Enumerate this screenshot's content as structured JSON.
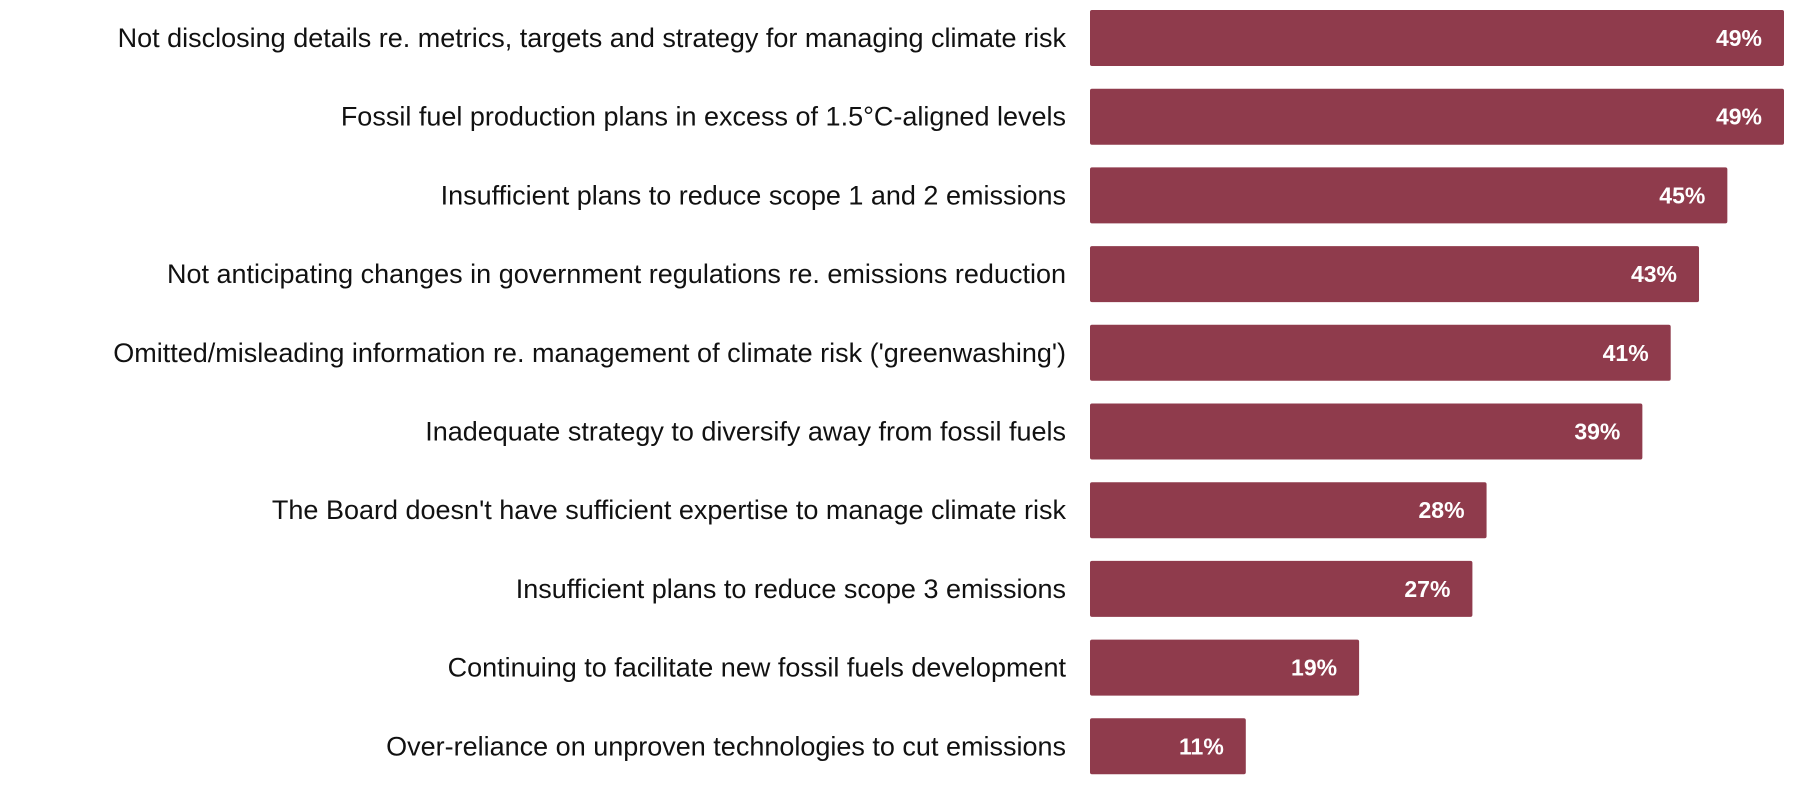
{
  "chart_data": {
    "type": "bar",
    "orientation": "horizontal",
    "title": "",
    "xlabel": "",
    "ylabel": "",
    "xlim": [
      0,
      49
    ],
    "grid": false,
    "legend": "none",
    "value_suffix": "%",
    "bar_color": "#8f3b4c",
    "categories": [
      "Not disclosing details re. metrics, targets and strategy for managing climate risk",
      "Fossil fuel production plans in excess of 1.5°C-aligned levels",
      "Insufficient plans to reduce scope 1 and 2 emissions",
      "Not anticipating changes in government regulations re. emissions reduction",
      "Omitted/misleading information re. management of climate risk ('greenwashing')",
      "Inadequate strategy to diversify away from fossil fuels",
      "The Board doesn't have sufficient expertise to manage climate risk",
      "Insufficient plans to reduce scope 3 emissions",
      "Continuing to facilitate new fossil fuels development",
      "Over-reliance on unproven technologies to cut emissions"
    ],
    "values": [
      49,
      49,
      45,
      43,
      41,
      39,
      28,
      27,
      19,
      11
    ],
    "value_labels": [
      "49%",
      "49%",
      "45%",
      "43%",
      "41%",
      "39%",
      "28%",
      "27%",
      "19%",
      "11%"
    ]
  }
}
